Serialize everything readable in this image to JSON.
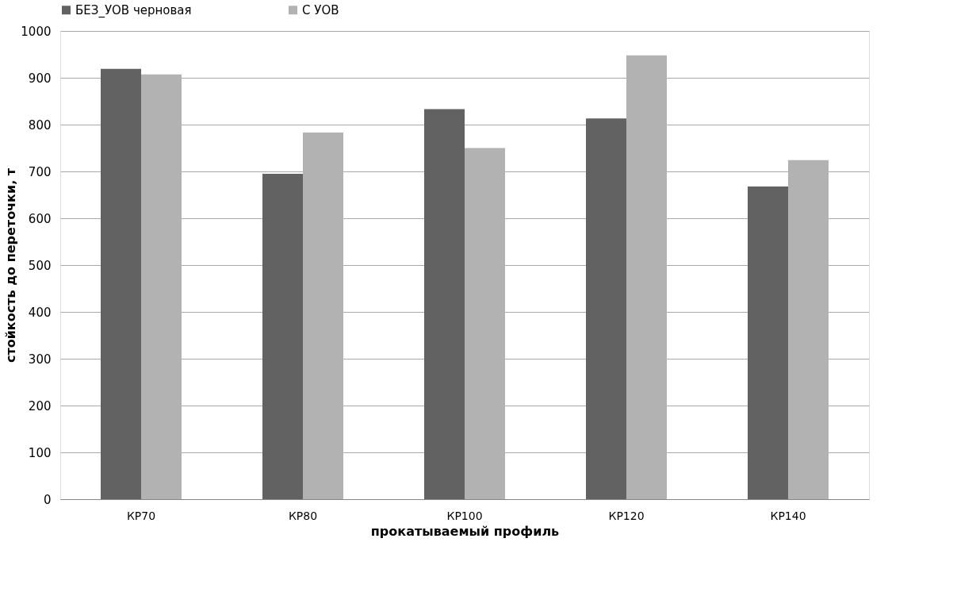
{
  "chart_data": {
    "type": "bar",
    "xlabel": "прокатываемый профиль",
    "ylabel": "стойкость до переточки, т",
    "categories": [
      "КР70",
      "КР80",
      "КР100",
      "КР120",
      "КР140"
    ],
    "series": [
      {
        "name": "БЕЗ_УОВ черновая",
        "color": "#626262",
        "values": [
          919,
          695,
          833,
          813,
          668
        ]
      },
      {
        "name": "С УОВ",
        "color": "#b2b2b2",
        "values": [
          907,
          783,
          750,
          948,
          724
        ]
      }
    ],
    "ylim": [
      0,
      1000
    ],
    "yticks": [
      0,
      100,
      200,
      300,
      400,
      500,
      600,
      700,
      800,
      900,
      1000
    ],
    "grid": "y",
    "legend": "top"
  }
}
